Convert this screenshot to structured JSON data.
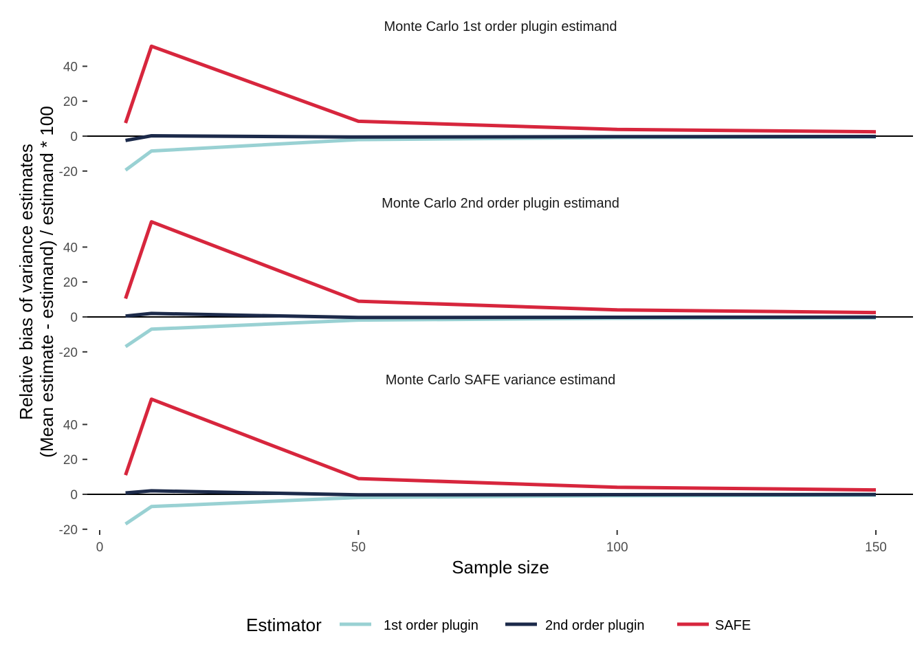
{
  "chart_data": {
    "type": "line",
    "xlabel": "Sample size",
    "ylabel_line1": "Relative bias of variance estimates",
    "ylabel_line2": "(Mean estimate - estimand) / estimand * 100",
    "xlim": [
      0,
      150
    ],
    "ylim": [
      -20,
      55
    ],
    "x_ticks": [
      0,
      50,
      100,
      150
    ],
    "x_tick_labels": [
      "0",
      "50",
      "100",
      "150"
    ],
    "y_ticks": [
      -20,
      0,
      20,
      40
    ],
    "y_tick_labels": [
      "-20",
      "0",
      "20",
      "40"
    ],
    "grid": false,
    "reference_line_y": 0,
    "legend": {
      "title": "Estimator",
      "position": "bottom",
      "entries": [
        "1st order plugin",
        "2nd order plugin",
        "SAFE"
      ]
    },
    "colors": {
      "1st order plugin": "#99d1d3",
      "2nd order plugin": "#1c2a4a",
      "SAFE": "#d7263d"
    },
    "x": [
      5,
      10,
      50,
      100,
      150
    ],
    "panels": [
      {
        "title": "Monte Carlo 1st order plugin estimand",
        "series": [
          {
            "name": "1st order plugin",
            "values": [
              -19.5,
              -8.5,
              -2.0,
              -0.8,
              -0.5
            ]
          },
          {
            "name": "2nd order plugin",
            "values": [
              -2.5,
              0.2,
              -0.5,
              -0.3,
              -0.2
            ]
          },
          {
            "name": "SAFE",
            "values": [
              7.5,
              51.5,
              8.5,
              3.8,
              2.5
            ]
          }
        ]
      },
      {
        "title": "Monte Carlo 2nd order plugin estimand",
        "series": [
          {
            "name": "1st order plugin",
            "values": [
              -17.0,
              -7.0,
              -1.8,
              -0.8,
              -0.5
            ]
          },
          {
            "name": "2nd order plugin",
            "values": [
              0.5,
              2.0,
              -0.3,
              -0.2,
              -0.1
            ]
          },
          {
            "name": "SAFE",
            "values": [
              10.5,
              54.5,
              9.0,
              4.0,
              2.5
            ]
          }
        ]
      },
      {
        "title": "Monte Carlo SAFE variance estimand",
        "series": [
          {
            "name": "1st order plugin",
            "values": [
              -17.0,
              -7.0,
              -1.8,
              -0.8,
              -0.5
            ]
          },
          {
            "name": "2nd order plugin",
            "values": [
              0.8,
              2.0,
              -0.3,
              -0.2,
              -0.1
            ]
          },
          {
            "name": "SAFE",
            "values": [
              11.0,
              54.5,
              9.0,
              4.0,
              2.5
            ]
          }
        ]
      }
    ]
  }
}
